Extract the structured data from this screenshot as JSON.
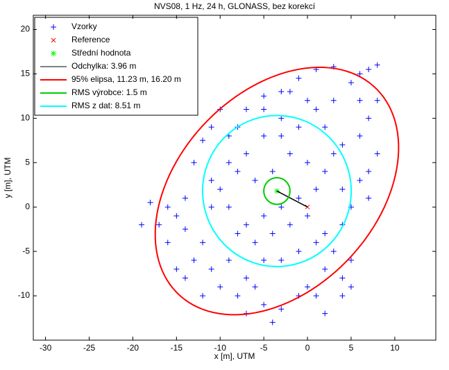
{
  "chart_data": {
    "type": "scatter",
    "title": "NVS08, 1 Hz, 24 h, GLONASS, bez korekcí",
    "x_label": "x [m], UTM",
    "y_label": "y [m], UTM",
    "xlim": [
      -31.4,
      14.7
    ],
    "ylim": [
      -15,
      21.6
    ],
    "xticks": [
      -30,
      -25,
      -20,
      -15,
      -10,
      -5,
      0,
      5,
      10
    ],
    "yticks": [
      -10,
      -5,
      0,
      5,
      10,
      15,
      20
    ],
    "legend": "upper left",
    "series": [
      {
        "name": "Vzorky",
        "color": "#0000ff",
        "marker": "+",
        "x": [
          8,
          7,
          6,
          3,
          1,
          -1,
          -3,
          -5,
          -7,
          -10,
          -11,
          -9,
          -12,
          -13,
          -11,
          -14,
          -16,
          -18,
          -19,
          -17,
          -14,
          -12,
          -13,
          -14,
          -11,
          -9,
          -10,
          -8,
          -6,
          -5,
          -4,
          -3,
          -1,
          0,
          1,
          2,
          4,
          5,
          5,
          3,
          2,
          4,
          5,
          4,
          6,
          7,
          7,
          8,
          6,
          7,
          8,
          6,
          5,
          3,
          1,
          -1,
          -3,
          -5,
          -7,
          -8,
          -6,
          -4,
          -2,
          0,
          2,
          1,
          -1,
          -3,
          -5,
          -7,
          -9,
          -10,
          -8,
          -6,
          -4,
          -2,
          0,
          1,
          -1,
          -3,
          -5,
          -7,
          -3,
          -5,
          -8,
          -2,
          0,
          2,
          4,
          3,
          -9,
          -11,
          -15,
          -16,
          -15,
          -12,
          -7,
          2,
          4
        ],
        "y": [
          16,
          15.5,
          15,
          15.8,
          15.5,
          14.5,
          13,
          12.5,
          11,
          11,
          9,
          8,
          7.5,
          5,
          3,
          1,
          0,
          0.5,
          -2,
          -2,
          -2.5,
          -4,
          -6,
          -8,
          -7,
          -6,
          -9,
          -10,
          -9,
          -11,
          -13,
          -11.5,
          -10,
          -9,
          -10,
          -7,
          -8,
          -9,
          -6,
          -5,
          -3,
          -2,
          0,
          2,
          3,
          1,
          4,
          6,
          8,
          10,
          12,
          12,
          14,
          12,
          11,
          9,
          10,
          8,
          6,
          4,
          3,
          4,
          6,
          5,
          4,
          2,
          1,
          0,
          -1,
          -2,
          0,
          2,
          -3,
          -4,
          -3,
          -2,
          -1,
          -4,
          -5,
          -6,
          -6,
          -8,
          8,
          11,
          9,
          13,
          12,
          9,
          7,
          6,
          5,
          0,
          -1,
          -4,
          -7,
          -10,
          -12,
          -12,
          -10
        ]
      },
      {
        "name": "Reference",
        "color": "#ff0000",
        "marker": "x",
        "x": [
          0
        ],
        "y": [
          0
        ]
      },
      {
        "name": "Střední hodnota",
        "color": "#00ff00",
        "marker": "*",
        "x": [
          -3.5
        ],
        "y": [
          1.8
        ]
      },
      {
        "name": "Odchylka: 3.96 m",
        "color": "#000000",
        "kind": "line",
        "x": [
          0,
          -3.5
        ],
        "y": [
          0,
          1.8
        ]
      },
      {
        "name": "95% elipsa, 11.23 m, 16.20 m",
        "color": "#ff0000",
        "kind": "ellipse",
        "center": [
          -3.5,
          1.8
        ],
        "semi_axes": [
          11.23,
          16.2
        ],
        "angle": 45
      },
      {
        "name": "RMS výrobce: 1.5 m",
        "color": "#00cc00",
        "kind": "circle",
        "center": [
          -3.5,
          1.8
        ],
        "radius": 1.5
      },
      {
        "name": "RMS z dat: 8.51 m",
        "color": "#00ffff",
        "kind": "circle",
        "center": [
          -3.5,
          1.8
        ],
        "radius": 8.51
      }
    ]
  }
}
